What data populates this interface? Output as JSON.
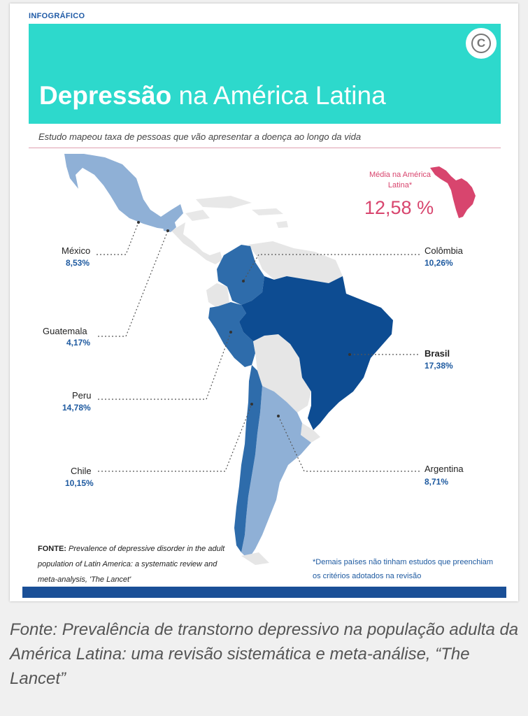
{
  "header": {
    "kicker": "INFOGRÁFICO",
    "title_bold": "Depressão",
    "title_rest": "na América Latina",
    "subtitle": "Estudo mapeou taxa de pessoas que vão apresentar a doença ao longo da vida",
    "copyright_symbol": "C"
  },
  "average": {
    "label": "Média na América Latina*",
    "value": "12,58 %"
  },
  "countries": [
    {
      "name": "México",
      "value": "8,53%"
    },
    {
      "name": "Guatemala",
      "value": "4,17%"
    },
    {
      "name": "Peru",
      "value": "14,78%"
    },
    {
      "name": "Chile",
      "value": "10,15%"
    },
    {
      "name": "Colômbia",
      "value": "10,26%"
    },
    {
      "name": "Brasil",
      "value": "17,38%"
    },
    {
      "name": "Argentina",
      "value": "8,71%"
    }
  ],
  "source": {
    "label": "FONTE:",
    "text": "Prevalence of depressive disorder in the adult population of Latin America: a systematic review and meta-analysis, 'The Lancet'"
  },
  "note": "*Demais países não tinham estudos que preenchiam os critérios adotados na revisão",
  "caption": "Fonte: Prevalência de transtorno depressivo na população adulta da América Latina: uma revisão sistemática e meta-análise, “The Lancet”",
  "colors": {
    "banner": "#2dd9cc",
    "dark_blue": "#0d4c92",
    "mid_blue": "#2e6cab",
    "light_blue": "#8fb0d6",
    "accent_pink": "#d8456e",
    "no_data": "#e6e6e6"
  }
}
